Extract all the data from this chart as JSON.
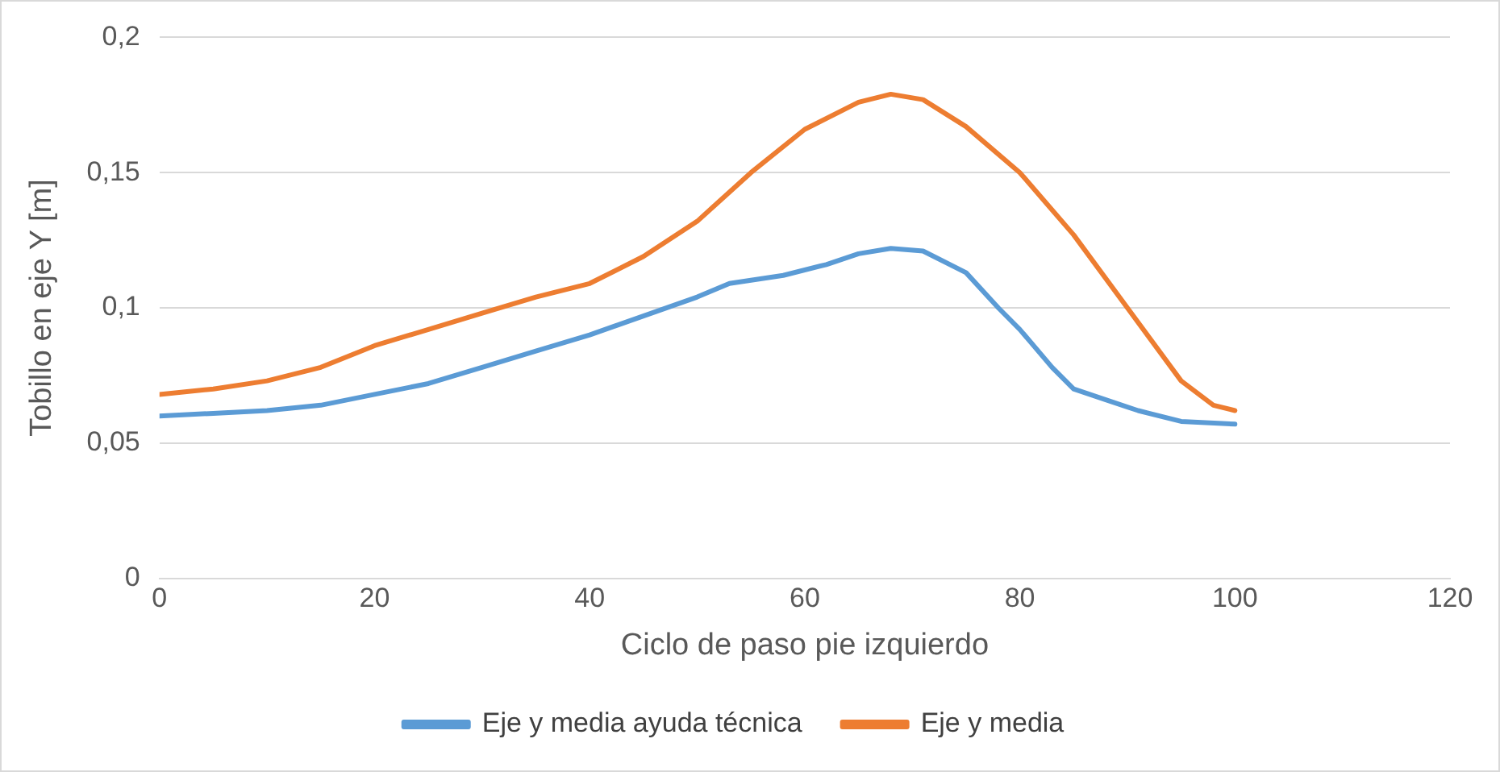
{
  "chart_data": {
    "type": "line",
    "xlabel": "Ciclo de paso pie izquierdo",
    "ylabel": "Tobillo en eje Y [m]",
    "xlim": [
      0,
      120
    ],
    "xticks": [
      0,
      20,
      40,
      60,
      80,
      100,
      120
    ],
    "ylim": [
      0,
      0.2
    ],
    "yticks": [
      0,
      {
        "value": 0.05,
        "label": "0,05"
      },
      {
        "value": 0.1,
        "label": "0,1"
      },
      {
        "value": 0.15,
        "label": "0,15"
      },
      {
        "value": 0.2,
        "label": "0,2"
      }
    ],
    "grid": "y",
    "legend": "bottom",
    "marker": "none",
    "line_style": "solid",
    "series": [
      {
        "name": "Eje y media ayuda técnica",
        "color": "#5b9bd5",
        "x": [
          0,
          5,
          10,
          15,
          20,
          25,
          30,
          35,
          40,
          45,
          50,
          53,
          58,
          62,
          65,
          68,
          71,
          75,
          78,
          80,
          83,
          85,
          88,
          91,
          95,
          100
        ],
        "values": [
          0.06,
          0.061,
          0.062,
          0.064,
          0.068,
          0.072,
          0.078,
          0.084,
          0.09,
          0.097,
          0.104,
          0.109,
          0.112,
          0.116,
          0.12,
          0.122,
          0.121,
          0.113,
          0.1,
          0.092,
          0.078,
          0.07,
          0.066,
          0.062,
          0.058,
          0.057
        ]
      },
      {
        "name": "Eje y media",
        "color": "#ed7d31",
        "x": [
          0,
          5,
          10,
          15,
          20,
          25,
          30,
          35,
          40,
          45,
          50,
          55,
          60,
          65,
          68,
          71,
          75,
          80,
          85,
          90,
          95,
          98,
          100
        ],
        "values": [
          0.068,
          0.07,
          0.073,
          0.078,
          0.086,
          0.092,
          0.098,
          0.104,
          0.109,
          0.119,
          0.132,
          0.15,
          0.166,
          0.176,
          0.179,
          0.177,
          0.167,
          0.15,
          0.127,
          0.1,
          0.073,
          0.064,
          0.062
        ]
      }
    ]
  }
}
